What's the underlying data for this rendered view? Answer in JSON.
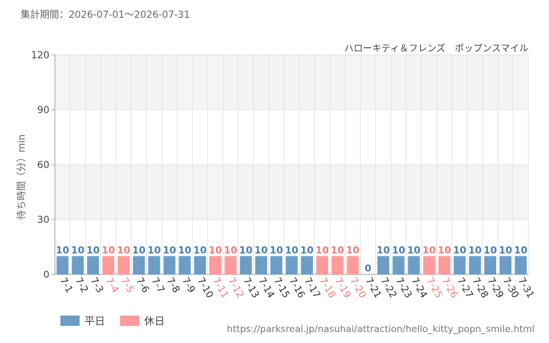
{
  "period_text": "集計期間：2026-07-01～2026-07-31",
  "source_url": "https://parksreal.jp/nasuhai/attraction/hello_kitty_popn_smile.html",
  "colors": {
    "weekday": "#6b9dc6",
    "holiday": "#ff9a9a",
    "weekday_text": "#4a7fae",
    "holiday_text": "#f07c7c"
  },
  "chart_data": {
    "type": "bar",
    "title": "ハローキティ＆フレンズ　ポップンスマイル",
    "ylabel": "待ち時間（分）min",
    "xlabel": "",
    "ylim": [
      0,
      120
    ],
    "yticks": [
      0,
      30,
      60,
      90,
      120
    ],
    "grid": true,
    "legend_position": "bottom-left",
    "categories": [
      "7-1",
      "7-2",
      "7-3",
      "7-4",
      "7-5",
      "7-6",
      "7-7",
      "7-8",
      "7-9",
      "7-10",
      "7-11",
      "7-12",
      "7-13",
      "7-14",
      "7-15",
      "7-16",
      "7-17",
      "7-18",
      "7-19",
      "7-20",
      "7-21",
      "7-22",
      "7-23",
      "7-24",
      "7-25",
      "7-26",
      "7-27",
      "7-28",
      "7-29",
      "7-30",
      "7-31"
    ],
    "values": [
      10,
      10,
      10,
      10,
      10,
      10,
      10,
      10,
      10,
      10,
      10,
      10,
      10,
      10,
      10,
      10,
      10,
      10,
      10,
      10,
      0,
      10,
      10,
      10,
      10,
      10,
      10,
      10,
      10,
      10,
      10
    ],
    "day_type": [
      "weekday",
      "weekday",
      "weekday",
      "holiday",
      "holiday",
      "weekday",
      "weekday",
      "weekday",
      "weekday",
      "weekday",
      "holiday",
      "holiday",
      "weekday",
      "weekday",
      "weekday",
      "weekday",
      "weekday",
      "holiday",
      "holiday",
      "holiday",
      "weekday",
      "weekday",
      "weekday",
      "weekday",
      "holiday",
      "holiday",
      "weekday",
      "weekday",
      "weekday",
      "weekday",
      "weekday"
    ],
    "series": [
      {
        "name": "平日",
        "key": "weekday"
      },
      {
        "name": "休日",
        "key": "holiday"
      }
    ]
  }
}
